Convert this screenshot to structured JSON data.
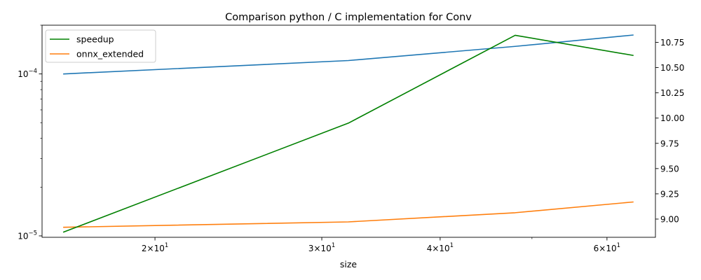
{
  "chart_data": {
    "type": "line",
    "title": "Comparison python / C implementation for Conv",
    "xlabel": "size",
    "xscale": "log",
    "xlim": [
      15.2,
      67.5
    ],
    "x": [
      16,
      32,
      48,
      64
    ],
    "x_ticks_major": [
      {
        "value": 20,
        "base": "2×10",
        "exp": "1"
      },
      {
        "value": 30,
        "base": "3×10",
        "exp": "1"
      },
      {
        "value": 40,
        "base": "4×10",
        "exp": "1"
      },
      {
        "value": 60,
        "base": "6×10",
        "exp": "1"
      }
    ],
    "x_ticks_minor": [
      50
    ],
    "left_axis": {
      "scale": "log",
      "ylim": [
        9.8e-06,
        0.0002
      ],
      "ticks_major": [
        {
          "value": 0.0001,
          "base": "10",
          "exp": "−4"
        },
        {
          "value": 1e-05,
          "base": "10",
          "exp": "−5"
        }
      ],
      "ticks_minor": [
        2e-05,
        3e-05,
        4e-05,
        5e-05,
        6e-05,
        7e-05,
        8e-05,
        9e-05,
        0.0002
      ]
    },
    "right_axis": {
      "scale": "linear",
      "ylim": [
        8.8196,
        10.9198
      ],
      "ticks": [
        "9.00",
        "9.25",
        "9.50",
        "9.75",
        "10.00",
        "10.25",
        "10.50",
        "10.75"
      ]
    },
    "series": [
      {
        "name": "",
        "axis": "left",
        "color": "#1f77b4",
        "values": [
          0.0001,
          0.000121,
          0.000148,
          0.000174
        ]
      },
      {
        "name": "onnx_extended",
        "axis": "left",
        "color": "#ff7f0e",
        "values": [
          1.13e-05,
          1.22e-05,
          1.39e-05,
          1.62e-05
        ]
      },
      {
        "name": "speedup",
        "axis": "right",
        "color": "#008000",
        "values": [
          8.87,
          9.95,
          10.82,
          10.62
        ]
      }
    ],
    "legend": {
      "position": "top-left",
      "entries": [
        {
          "label": "speedup",
          "color": "#008000"
        },
        {
          "label": "onnx_extended",
          "color": "#ff7f0e"
        }
      ]
    },
    "grid": false
  }
}
